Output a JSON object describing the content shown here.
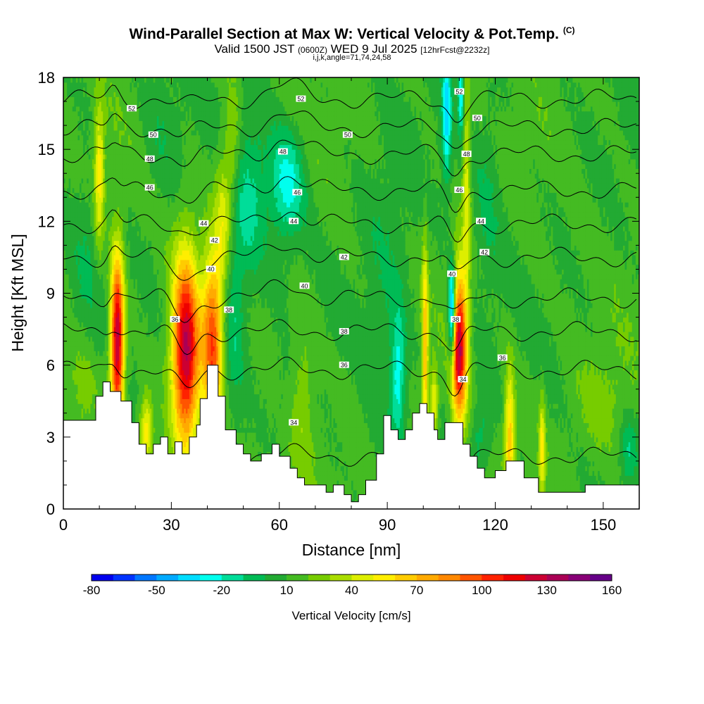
{
  "title": "Wind-Parallel Section at Max W: Vertical Velocity & Pot.Temp.",
  "title_mark": "(C)",
  "subtitle_a": "Valid 1500 JST",
  "subtitle_b": "(0600Z)",
  "subtitle_c": "WED 9 Jul 2025",
  "subtitle_d": "[12hrFcst@2232z]",
  "subtitle2": "i,j,k,angle=71,74,24,58",
  "chart_data": {
    "type": "heatmap",
    "xlabel": "Distance [nm]",
    "ylabel": "Height [Kft MSL]",
    "xlim": [
      0,
      160
    ],
    "ylim": [
      0,
      18
    ],
    "x_ticks": [
      0,
      30,
      60,
      90,
      120,
      150
    ],
    "y_ticks": [
      0,
      3,
      6,
      9,
      12,
      15,
      18
    ],
    "colorbar": {
      "label": "Vertical Velocity [cm/s]",
      "min": -80,
      "max": 160,
      "step": 10,
      "tick_labels": [
        -80,
        -50,
        -20,
        10,
        40,
        70,
        100,
        130,
        160
      ],
      "colors": [
        "#0000ee",
        "#0033ff",
        "#0077ff",
        "#00aaff",
        "#00ddff",
        "#00ffee",
        "#00dd99",
        "#00bb55",
        "#22aa33",
        "#44bb22",
        "#77cc00",
        "#aadd00",
        "#ddee00",
        "#ffee00",
        "#ffcc00",
        "#ffaa00",
        "#ff8800",
        "#ff5500",
        "#ff2200",
        "#ee0000",
        "#cc0033",
        "#aa0055",
        "#880077",
        "#660088"
      ]
    },
    "terrain_kft": [
      [
        0,
        3.7
      ],
      [
        9,
        3.7
      ],
      [
        9,
        4.7
      ],
      [
        11,
        4.7
      ],
      [
        11,
        5.3
      ],
      [
        13,
        5.3
      ],
      [
        13,
        4.9
      ],
      [
        16,
        4.9
      ],
      [
        16,
        4.5
      ],
      [
        19,
        4.5
      ],
      [
        19,
        3.6
      ],
      [
        21,
        3.6
      ],
      [
        21,
        2.7
      ],
      [
        23,
        2.7
      ],
      [
        23,
        2.3
      ],
      [
        25,
        2.3
      ],
      [
        25,
        2.7
      ],
      [
        27,
        2.7
      ],
      [
        27,
        3.0
      ],
      [
        29,
        3.0
      ],
      [
        29,
        2.3
      ],
      [
        31,
        2.3
      ],
      [
        31,
        2.8
      ],
      [
        33,
        2.8
      ],
      [
        33,
        2.3
      ],
      [
        35,
        2.3
      ],
      [
        35,
        3.0
      ],
      [
        37,
        3.0
      ],
      [
        37,
        3.5
      ],
      [
        38,
        3.5
      ],
      [
        38,
        4.6
      ],
      [
        40,
        4.6
      ],
      [
        40,
        6.0
      ],
      [
        43,
        6.0
      ],
      [
        43,
        4.7
      ],
      [
        45,
        4.7
      ],
      [
        45,
        3.3
      ],
      [
        48,
        3.3
      ],
      [
        48,
        2.7
      ],
      [
        50,
        2.7
      ],
      [
        50,
        2.3
      ],
      [
        52,
        2.3
      ],
      [
        52,
        2.0
      ],
      [
        55,
        2.0
      ],
      [
        55,
        2.3
      ],
      [
        58,
        2.3
      ],
      [
        58,
        2.7
      ],
      [
        60,
        2.7
      ],
      [
        60,
        2.2
      ],
      [
        63,
        2.2
      ],
      [
        63,
        1.7
      ],
      [
        65,
        1.7
      ],
      [
        65,
        1.3
      ],
      [
        67,
        1.3
      ],
      [
        67,
        1.0
      ],
      [
        70,
        1.0
      ],
      [
        70,
        1.0
      ],
      [
        73,
        1.0
      ],
      [
        73,
        0.7
      ],
      [
        75,
        0.7
      ],
      [
        75,
        1.0
      ],
      [
        78,
        1.0
      ],
      [
        78,
        0.6
      ],
      [
        80,
        0.6
      ],
      [
        80,
        0.3
      ],
      [
        82,
        0.3
      ],
      [
        82,
        0.6
      ],
      [
        84,
        0.6
      ],
      [
        84,
        1.2
      ],
      [
        87,
        1.2
      ],
      [
        87,
        2.3
      ],
      [
        89,
        2.3
      ],
      [
        89,
        3.9
      ],
      [
        91,
        3.9
      ],
      [
        91,
        3.3
      ],
      [
        93,
        3.3
      ],
      [
        93,
        2.9
      ],
      [
        95,
        2.9
      ],
      [
        95,
        3.3
      ],
      [
        97,
        3.3
      ],
      [
        97,
        4.0
      ],
      [
        99,
        4.0
      ],
      [
        99,
        4.4
      ],
      [
        101,
        4.4
      ],
      [
        101,
        4.0
      ],
      [
        103,
        4.0
      ],
      [
        103,
        3.3
      ],
      [
        104,
        3.3
      ],
      [
        104,
        2.9
      ],
      [
        106,
        2.9
      ],
      [
        106,
        3.6
      ],
      [
        111,
        3.6
      ],
      [
        111,
        2.7
      ],
      [
        113,
        2.7
      ],
      [
        113,
        2.2
      ],
      [
        115,
        2.2
      ],
      [
        115,
        1.7
      ],
      [
        117,
        1.7
      ],
      [
        117,
        1.3
      ],
      [
        120,
        1.3
      ],
      [
        120,
        1.6
      ],
      [
        123,
        1.6
      ],
      [
        123,
        2.0
      ],
      [
        128,
        2.0
      ],
      [
        128,
        1.3
      ],
      [
        132,
        1.3
      ],
      [
        132,
        0.7
      ],
      [
        145,
        0.7
      ],
      [
        145,
        1.0
      ],
      [
        160,
        1.0
      ]
    ],
    "updrafts": [
      {
        "x": 15,
        "y": 7,
        "sx": 1.3,
        "sy": 2.5,
        "w": 125
      },
      {
        "x": 10,
        "y": 14,
        "sx": 1.0,
        "sy": 2.0,
        "w": 45
      },
      {
        "x": 23,
        "y": 3.2,
        "sx": 1.2,
        "sy": 1.0,
        "w": 45
      },
      {
        "x": 34,
        "y": 6.6,
        "sx": 2.6,
        "sy": 2.8,
        "w": 120
      },
      {
        "x": 41.5,
        "y": 7.0,
        "sx": 2.0,
        "sy": 2.6,
        "w": 85
      },
      {
        "x": 44.5,
        "y": 12.0,
        "sx": 1.6,
        "sy": 2.0,
        "w": 35
      },
      {
        "x": 47,
        "y": 15.0,
        "sx": 1.5,
        "sy": 2.0,
        "w": 22
      },
      {
        "x": 65,
        "y": 5,
        "sx": 3,
        "sy": 2,
        "w": 28
      },
      {
        "x": 100.5,
        "y": 6.5,
        "sx": 0.6,
        "sy": 3.0,
        "w": 60
      },
      {
        "x": 103,
        "y": 4.5,
        "sx": 0.8,
        "sy": 1.0,
        "w": 40
      },
      {
        "x": 110,
        "y": 6.8,
        "sx": 1.5,
        "sy": 2.2,
        "w": 118
      },
      {
        "x": 112,
        "y": 13.5,
        "sx": 0.8,
        "sy": 3.0,
        "w": 35
      },
      {
        "x": 124,
        "y": 3.0,
        "sx": 1.0,
        "sy": 2.0,
        "w": 55
      },
      {
        "x": 133,
        "y": 2.5,
        "sx": 0.6,
        "sy": 1.5,
        "w": 40
      },
      {
        "x": 5,
        "y": 5,
        "sx": 3,
        "sy": 1.5,
        "w": 14
      },
      {
        "x": 150,
        "y": 4.5,
        "sx": 5,
        "sy": 1.5,
        "w": 12
      }
    ],
    "downdrafts": [
      {
        "x": 62,
        "y": 13.5,
        "sx": 3.5,
        "sy": 1.6,
        "w": -38
      },
      {
        "x": 52,
        "y": 13.0,
        "sx": 3.0,
        "sy": 2.5,
        "w": -22
      },
      {
        "x": 47,
        "y": 8.5,
        "sx": 2.5,
        "sy": 3.0,
        "w": -25
      },
      {
        "x": 108,
        "y": 8.2,
        "sx": 0.7,
        "sy": 1.4,
        "w": -85
      },
      {
        "x": 106.5,
        "y": 16.5,
        "sx": 0.9,
        "sy": 2.0,
        "w": -45
      },
      {
        "x": 110.5,
        "y": 17.3,
        "sx": 0.6,
        "sy": 1.2,
        "w": -40
      },
      {
        "x": 93,
        "y": 5.5,
        "sx": 1.4,
        "sy": 1.8,
        "w": -35
      },
      {
        "x": 90,
        "y": 9,
        "sx": 5,
        "sy": 4,
        "w": -12
      },
      {
        "x": 63,
        "y": 5,
        "sx": 2.5,
        "sy": 1.5,
        "w": -22
      },
      {
        "x": 28,
        "y": 16,
        "sx": 4,
        "sy": 2,
        "w": -10
      },
      {
        "x": 157,
        "y": 2.5,
        "sx": 1.5,
        "sy": 1.0,
        "w": -20
      },
      {
        "x": 118,
        "y": 13,
        "sx": 3,
        "sy": 3,
        "w": -12
      },
      {
        "x": 6,
        "y": 11,
        "sx": 3,
        "sy": 3,
        "w": -10
      },
      {
        "x": 116,
        "y": 3,
        "sx": 2,
        "sy": 1,
        "w": -18
      }
    ],
    "isentropes": [
      {
        "value": 34,
        "base_kft": 2.2
      },
      {
        "value": 36,
        "base_kft": 5.8
      },
      {
        "value": 38,
        "base_kft": 7.4
      },
      {
        "value": 40,
        "base_kft": 8.8
      },
      {
        "value": 42,
        "base_kft": 10.5
      },
      {
        "value": 44,
        "base_kft": 11.9
      },
      {
        "value": 46,
        "base_kft": 13.3
      },
      {
        "value": 48,
        "base_kft": 14.8
      },
      {
        "value": 50,
        "base_kft": 15.9
      },
      {
        "value": 52,
        "base_kft": 17.1
      }
    ],
    "isentrope_labels": [
      {
        "text": "36",
        "x": 31,
        "y": 7.9
      },
      {
        "text": "38",
        "x": 46,
        "y": 8.3
      },
      {
        "text": "40",
        "x": 41,
        "y": 10.0
      },
      {
        "text": "42",
        "x": 42,
        "y": 11.2
      },
      {
        "text": "44",
        "x": 39,
        "y": 11.9
      },
      {
        "text": "46",
        "x": 24,
        "y": 13.4
      },
      {
        "text": "48",
        "x": 24,
        "y": 14.6
      },
      {
        "text": "50",
        "x": 25,
        "y": 15.6
      },
      {
        "text": "52",
        "x": 19,
        "y": 16.7
      },
      {
        "text": "52",
        "x": 66,
        "y": 17.1
      },
      {
        "text": "50",
        "x": 79,
        "y": 15.6
      },
      {
        "text": "48",
        "x": 61,
        "y": 14.9
      },
      {
        "text": "46",
        "x": 65,
        "y": 13.2
      },
      {
        "text": "44",
        "x": 64,
        "y": 12.0
      },
      {
        "text": "42",
        "x": 78,
        "y": 10.5
      },
      {
        "text": "40",
        "x": 67,
        "y": 9.3
      },
      {
        "text": "38",
        "x": 78,
        "y": 7.4
      },
      {
        "text": "36",
        "x": 78,
        "y": 6.0
      },
      {
        "text": "34",
        "x": 64,
        "y": 3.6
      },
      {
        "text": "52",
        "x": 110,
        "y": 17.4
      },
      {
        "text": "50",
        "x": 115,
        "y": 16.3
      },
      {
        "text": "48",
        "x": 112,
        "y": 14.8
      },
      {
        "text": "46",
        "x": 110,
        "y": 13.3
      },
      {
        "text": "44",
        "x": 116,
        "y": 12.0
      },
      {
        "text": "42",
        "x": 117,
        "y": 10.7
      },
      {
        "text": "40",
        "x": 108,
        "y": 9.8
      },
      {
        "text": "38",
        "x": 109,
        "y": 7.9
      },
      {
        "text": "36",
        "x": 122,
        "y": 6.3
      },
      {
        "text": "34",
        "x": 111,
        "y": 5.4
      }
    ]
  }
}
